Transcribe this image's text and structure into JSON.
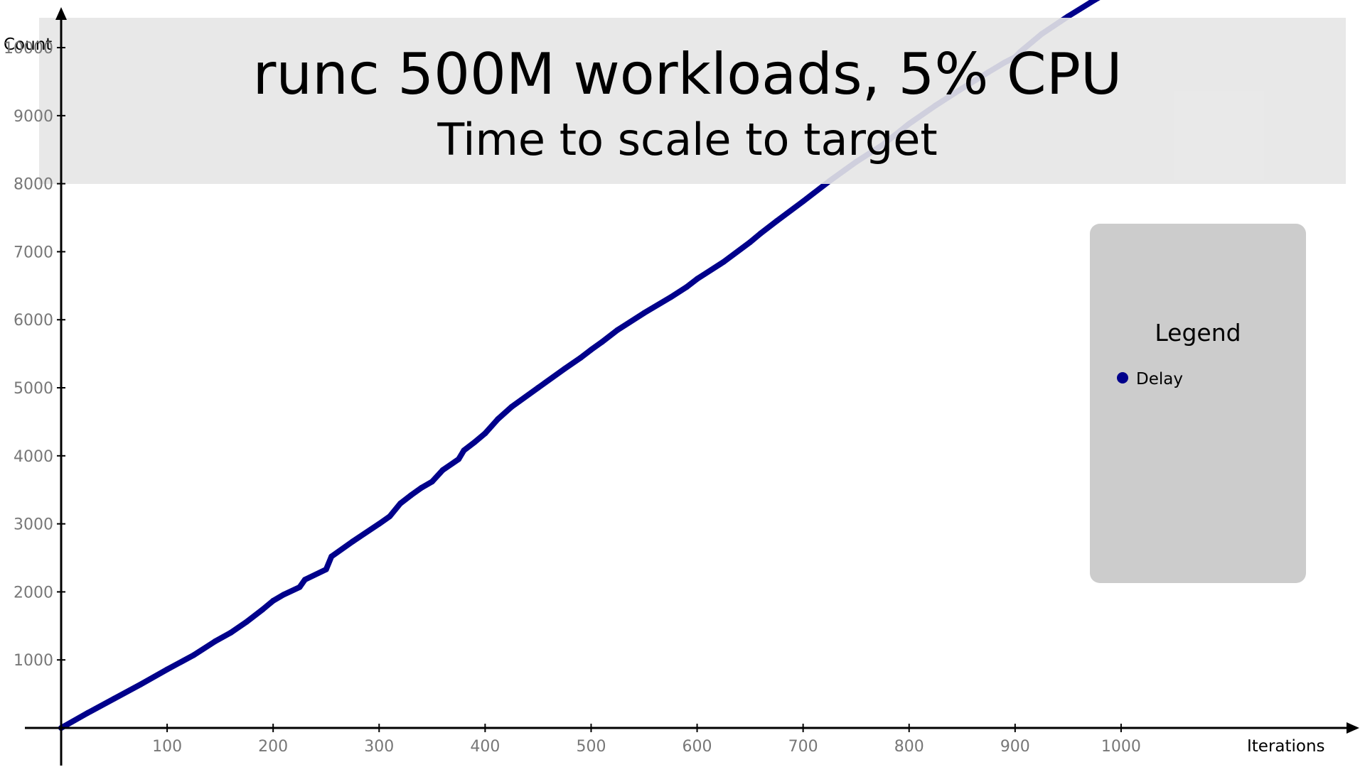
{
  "chart_data": {
    "type": "line",
    "title": "runc 500M workloads, 5% CPU",
    "subtitle": "Time to scale to target",
    "xlabel": "Iterations",
    "ylabel": "Count",
    "xlim": [
      0,
      1100
    ],
    "ylim": [
      0,
      10700
    ],
    "xticks": [
      100,
      200,
      300,
      400,
      500,
      600,
      700,
      800,
      900,
      1000
    ],
    "yticks": [
      1000,
      2000,
      3000,
      4000,
      5000,
      6000,
      7000,
      8000,
      9000,
      10000
    ],
    "grid": false,
    "legend": {
      "title": "Legend",
      "placement": "right"
    },
    "series": [
      {
        "name": "Delay",
        "color": "#00008b",
        "x": [
          0,
          25,
          50,
          75,
          100,
          125,
          145,
          160,
          175,
          190,
          200,
          210,
          225,
          230,
          250,
          255,
          275,
          300,
          310,
          320,
          330,
          340,
          350,
          360,
          375,
          380,
          390,
          400,
          412,
          425,
          450,
          475,
          490,
          500,
          510,
          525,
          550,
          575,
          590,
          600,
          625,
          650,
          660,
          675,
          700,
          725,
          750,
          775,
          800,
          825,
          850,
          875,
          890,
          900,
          905,
          925,
          950,
          975,
          1000
        ],
        "y": [
          0,
          220,
          430,
          640,
          860,
          1070,
          1270,
          1400,
          1560,
          1740,
          1870,
          1960,
          2070,
          2180,
          2330,
          2520,
          2740,
          3000,
          3110,
          3300,
          3420,
          3530,
          3620,
          3790,
          3950,
          4080,
          4200,
          4330,
          4540,
          4720,
          5000,
          5280,
          5440,
          5560,
          5670,
          5850,
          6100,
          6330,
          6480,
          6600,
          6850,
          7140,
          7270,
          7450,
          7740,
          8040,
          8320,
          8570,
          8880,
          9150,
          9400,
          9640,
          9780,
          9860,
          9940,
          10200,
          10460,
          10700,
          10920
        ]
      }
    ]
  }
}
